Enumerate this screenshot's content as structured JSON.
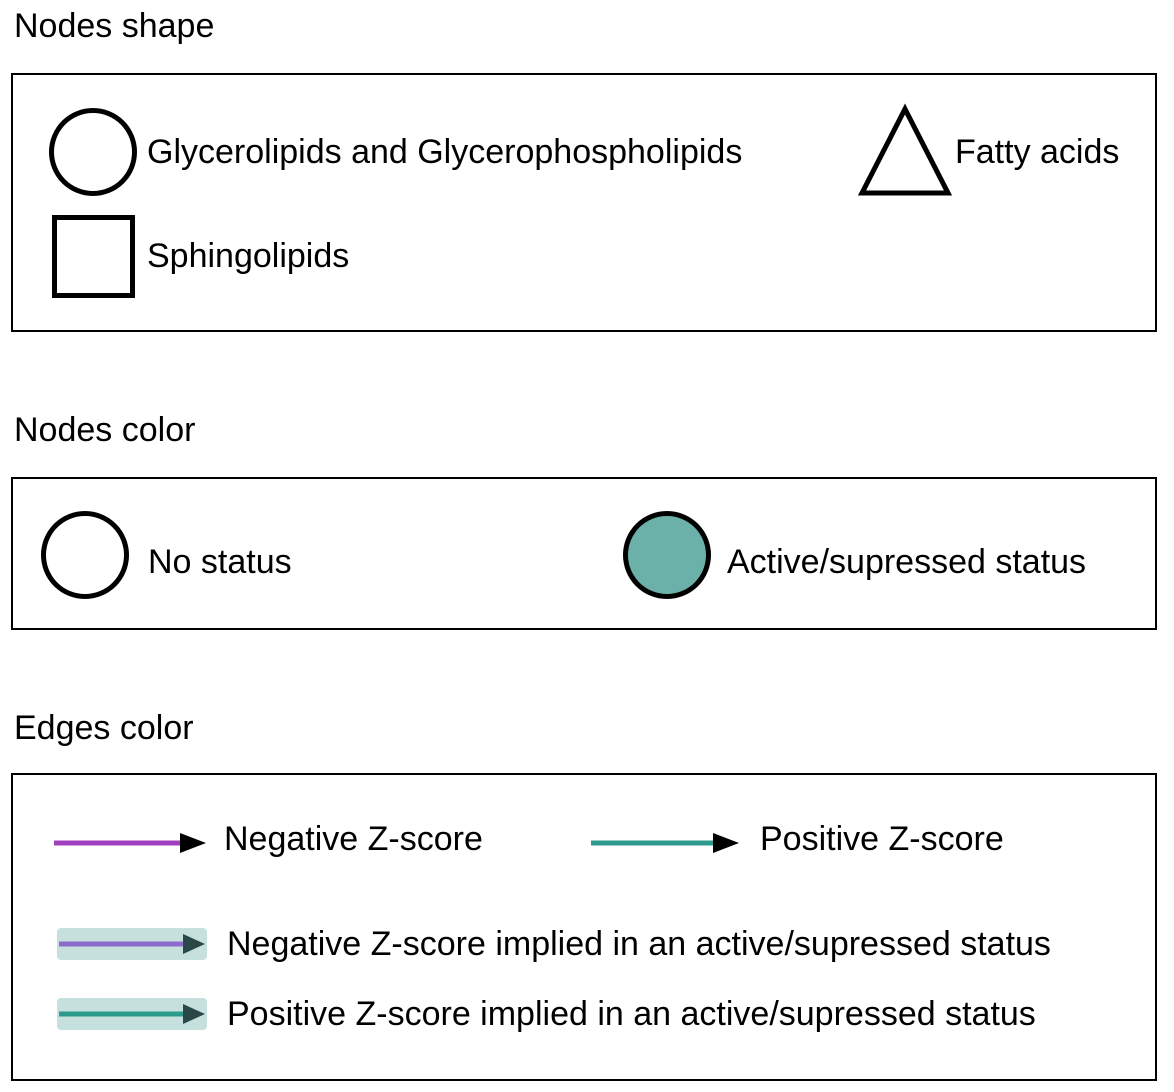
{
  "sections": {
    "shape": {
      "title": "Nodes shape",
      "items": [
        {
          "icon": "circle-outline-icon",
          "label": "Glycerolipids and Glycerophospholipids"
        },
        {
          "icon": "triangle-outline-icon",
          "label": "Fatty acids"
        },
        {
          "icon": "square-outline-icon",
          "label": "Sphingolipids"
        }
      ]
    },
    "color": {
      "title": "Nodes color",
      "items": [
        {
          "icon": "circle-outline-icon",
          "label": "No status"
        },
        {
          "icon": "circle-filled-teal-icon",
          "label": "Active/supressed status"
        }
      ]
    },
    "edges": {
      "title": "Edges color",
      "items": [
        {
          "icon": "purple-arrow-icon",
          "label": "Negative Z-score"
        },
        {
          "icon": "teal-arrow-icon",
          "label": "Positive Z-score"
        },
        {
          "icon": "purple-arrow-highlighted-icon",
          "label": "Negative Z-score implied in an active/supressed status"
        },
        {
          "icon": "teal-arrow-highlighted-icon",
          "label": "Positive Z-score implied in an active/supressed status"
        }
      ]
    }
  },
  "colors": {
    "stroke": "#000000",
    "status_fill": "#6bb1aa",
    "negative_edge": "#a040c0",
    "negative_edge_highlighted": "#8c6ccb",
    "positive_edge": "#2e9a8c",
    "highlight_band": "#c6e0de",
    "arrow_head": "#000000",
    "arrow_head_highlighted": "#2a4848"
  }
}
